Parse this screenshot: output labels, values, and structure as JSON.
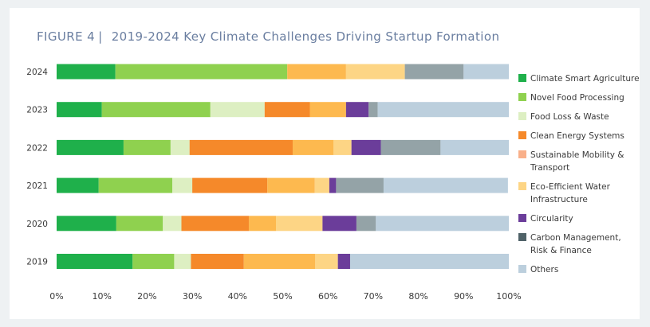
{
  "figure": {
    "label": "FIGURE  4",
    "separator": "|",
    "title": "2019-2024 Key Climate Challenges Driving Startup Formation"
  },
  "colors": {
    "background": "#eef1f3",
    "card": "#ffffff",
    "title": "#6a7ea0",
    "axis_text": "#3a3a3a"
  },
  "chart_data": {
    "type": "bar",
    "orientation": "horizontal",
    "stacked": true,
    "title": "2019-2024 Key Climate Challenges Driving Startup Formation",
    "xlabel": "",
    "ylabel": "",
    "xlim": [
      0,
      100
    ],
    "x_ticks": [
      "0%",
      "10%",
      "20%",
      "30%",
      "40%",
      "50%",
      "60%",
      "70%",
      "80%",
      "90%",
      "100%"
    ],
    "categories": [
      "2024",
      "2023",
      "2022",
      "2021",
      "2020",
      "2019"
    ],
    "legend_position": "right",
    "grid": false,
    "series": [
      {
        "name": "Climate Smart Agriculture",
        "color": "#1fb04b",
        "values": [
          13,
          10,
          14.8,
          9.3,
          13.2,
          16.8
        ]
      },
      {
        "name": "Novel Food Processing",
        "color": "#8fd14f",
        "values": [
          38,
          24,
          10.4,
          16.3,
          10.3,
          9.2
        ]
      },
      {
        "name": "Food Loss & Waste",
        "color": "#ddefc2",
        "values": [
          0,
          12,
          4.2,
          4.4,
          4.1,
          3.7
        ]
      },
      {
        "name": "Clean Energy Systems",
        "color": "#f5892a",
        "values": [
          0,
          10,
          22.8,
          16.6,
          14.9,
          11.7
        ]
      },
      {
        "name": "Sustainable Mobility & Transport",
        "color": "#f9b08a",
        "values": [
          0,
          0,
          0,
          0,
          0,
          0
        ]
      },
      {
        "name": "Eco-Efficient Water Infrastructure",
        "color": "#fdb94f",
        "values": [
          13,
          8,
          9,
          10.5,
          6,
          15.8
        ]
      },
      {
        "name": "Eco-Efficient Water Infrastructure (light)",
        "color": "#fdd585",
        "values": [
          13,
          0,
          4,
          3.2,
          10.3,
          5
        ],
        "hidden_legend": true
      },
      {
        "name": "Circularity",
        "color": "#6b3d9a",
        "values": [
          0,
          5,
          6.5,
          1.5,
          7.5,
          2.7
        ]
      },
      {
        "name": "Carbon Management, Risk & Finance",
        "color": "#94a3a7",
        "values": [
          13,
          2,
          13.2,
          10.5,
          4.3,
          0
        ]
      },
      {
        "name": "Others",
        "color": "#bccfdd",
        "values": [
          10,
          29,
          15.1,
          27.5,
          29.4,
          35.1
        ]
      }
    ],
    "legend": [
      {
        "label": [
          "Climate Smart Agriculture"
        ],
        "color": "#1fb04b"
      },
      {
        "label": [
          "Novel Food Processing"
        ],
        "color": "#8fd14f"
      },
      {
        "label": [
          "Food Loss & Waste"
        ],
        "color": "#ddefc2"
      },
      {
        "label": [
          "Clean Energy Systems"
        ],
        "color": "#f5892a"
      },
      {
        "label": [
          "Sustainable Mobility &",
          "Transport"
        ],
        "color": "#f9b08a"
      },
      {
        "label": [
          "Eco-Efficient Water",
          "Infrastructure"
        ],
        "color": "#fdd585"
      },
      {
        "label": [
          "Circularity"
        ],
        "color": "#6b3d9a"
      },
      {
        "label": [
          "Carbon Management,",
          "Risk & Finance"
        ],
        "color": "#4f6268"
      },
      {
        "label": [
          "Others"
        ],
        "color": "#bccfdd"
      }
    ]
  }
}
